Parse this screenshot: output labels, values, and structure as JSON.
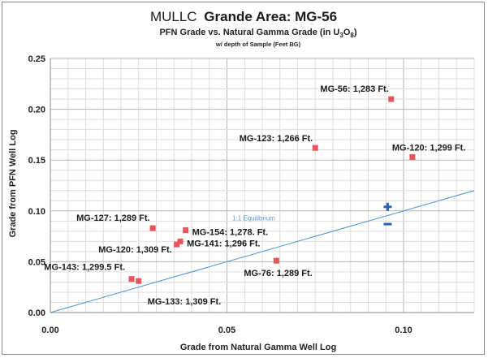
{
  "chart_data": {
    "type": "scatter",
    "title_prefix": "MULLC",
    "title_main": "Grande Area: MG-56",
    "subtitle_part1": "PFN Grade vs. Natural Gamma Grade (in U",
    "subtitle_sub1": "3",
    "subtitle_part2": "O",
    "subtitle_sub2": "8",
    "subtitle_part3": ")",
    "note": "w/ depth of Sample (Feet BG)",
    "xlabel": "Grade from Natural Gamma Well Log",
    "ylabel": "Grade from  PFN Well Log",
    "xlim": [
      0,
      0.12
    ],
    "ylim": [
      0,
      0.25
    ],
    "xticks": [
      0,
      0.05,
      0.1
    ],
    "xtick_labels": [
      "0.00",
      "0.05",
      "0.10"
    ],
    "yticks": [
      0,
      0.05,
      0.1,
      0.15,
      0.2,
      0.25
    ],
    "ytick_labels": [
      "0.00",
      "0.05",
      "0.10",
      "0.15",
      "0.20",
      "0.25"
    ],
    "grid": true,
    "point_color": "#e8545a",
    "line_color": "#4a90d0",
    "marker_color": "#2e5fb5",
    "equilibrium_label": "1:1 Equilibrium",
    "points": [
      {
        "x": 0.0965,
        "y": 0.21,
        "label": "MG-56: 1,283 Ft."
      },
      {
        "x": 0.075,
        "y": 0.162,
        "label": "MG-123: 1,266 Ft."
      },
      {
        "x": 0.1025,
        "y": 0.153,
        "label": "MG-120: 1,299 Ft."
      },
      {
        "x": 0.029,
        "y": 0.083,
        "label": "MG-127: 1,289 Ft."
      },
      {
        "x": 0.0383,
        "y": 0.081,
        "label": "MG-154: 1,278. Ft."
      },
      {
        "x": 0.0368,
        "y": 0.07,
        "label": "MG-141: 1,296 Ft."
      },
      {
        "x": 0.0358,
        "y": 0.067,
        "label": "MG-120: 1,309 Ft."
      },
      {
        "x": 0.064,
        "y": 0.051,
        "label": "MG-76: 1,289 Ft."
      },
      {
        "x": 0.023,
        "y": 0.033,
        "label": "MG-143: 1,299.5 Ft."
      },
      {
        "x": 0.025,
        "y": 0.031,
        "label": "MG-133: 1,309 Ft."
      }
    ],
    "equilibrium_line": {
      "x": [
        0,
        0.12
      ],
      "y": [
        0,
        0.12
      ]
    },
    "markers": [
      {
        "type": "plus",
        "x": 0.0955,
        "y": 0.104
      },
      {
        "type": "minus",
        "x": 0.0955,
        "y": 0.087
      }
    ]
  }
}
